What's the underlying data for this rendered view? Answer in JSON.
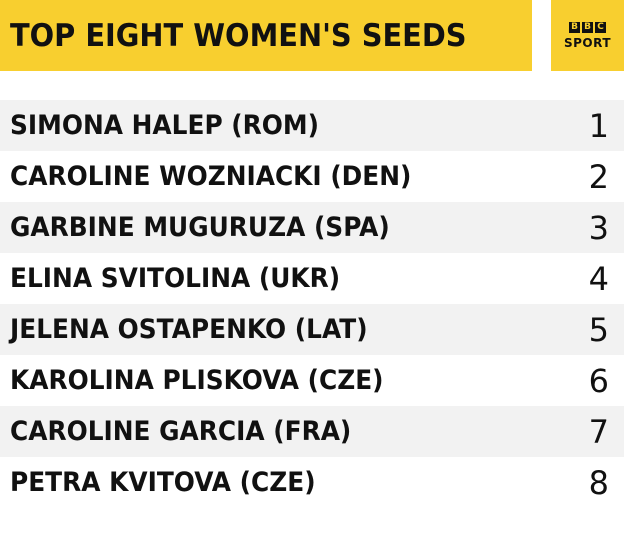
{
  "header": {
    "title": "TOP EIGHT WOMEN'S SEEDS",
    "logo": {
      "letters": [
        "B",
        "B",
        "C"
      ],
      "sport": "SPORT"
    }
  },
  "colors": {
    "accent": "#f8cf2f",
    "row_alt": "#f2f2f2",
    "text": "#111111"
  },
  "rows": [
    {
      "player": "SIMONA HALEP (ROM)",
      "seed": "1"
    },
    {
      "player": "CAROLINE WOZNIACKI (DEN)",
      "seed": "2"
    },
    {
      "player": "GARBINE MUGURUZA (SPA)",
      "seed": "3"
    },
    {
      "player": "ELINA SVITOLINA (UKR)",
      "seed": "4"
    },
    {
      "player": "JELENA OSTAPENKO (LAT)",
      "seed": "5"
    },
    {
      "player": "KAROLINA PLISKOVA (CZE)",
      "seed": "6"
    },
    {
      "player": "CAROLINE GARCIA (FRA)",
      "seed": "7"
    },
    {
      "player": "PETRA KVITOVA (CZE)",
      "seed": "8"
    }
  ]
}
